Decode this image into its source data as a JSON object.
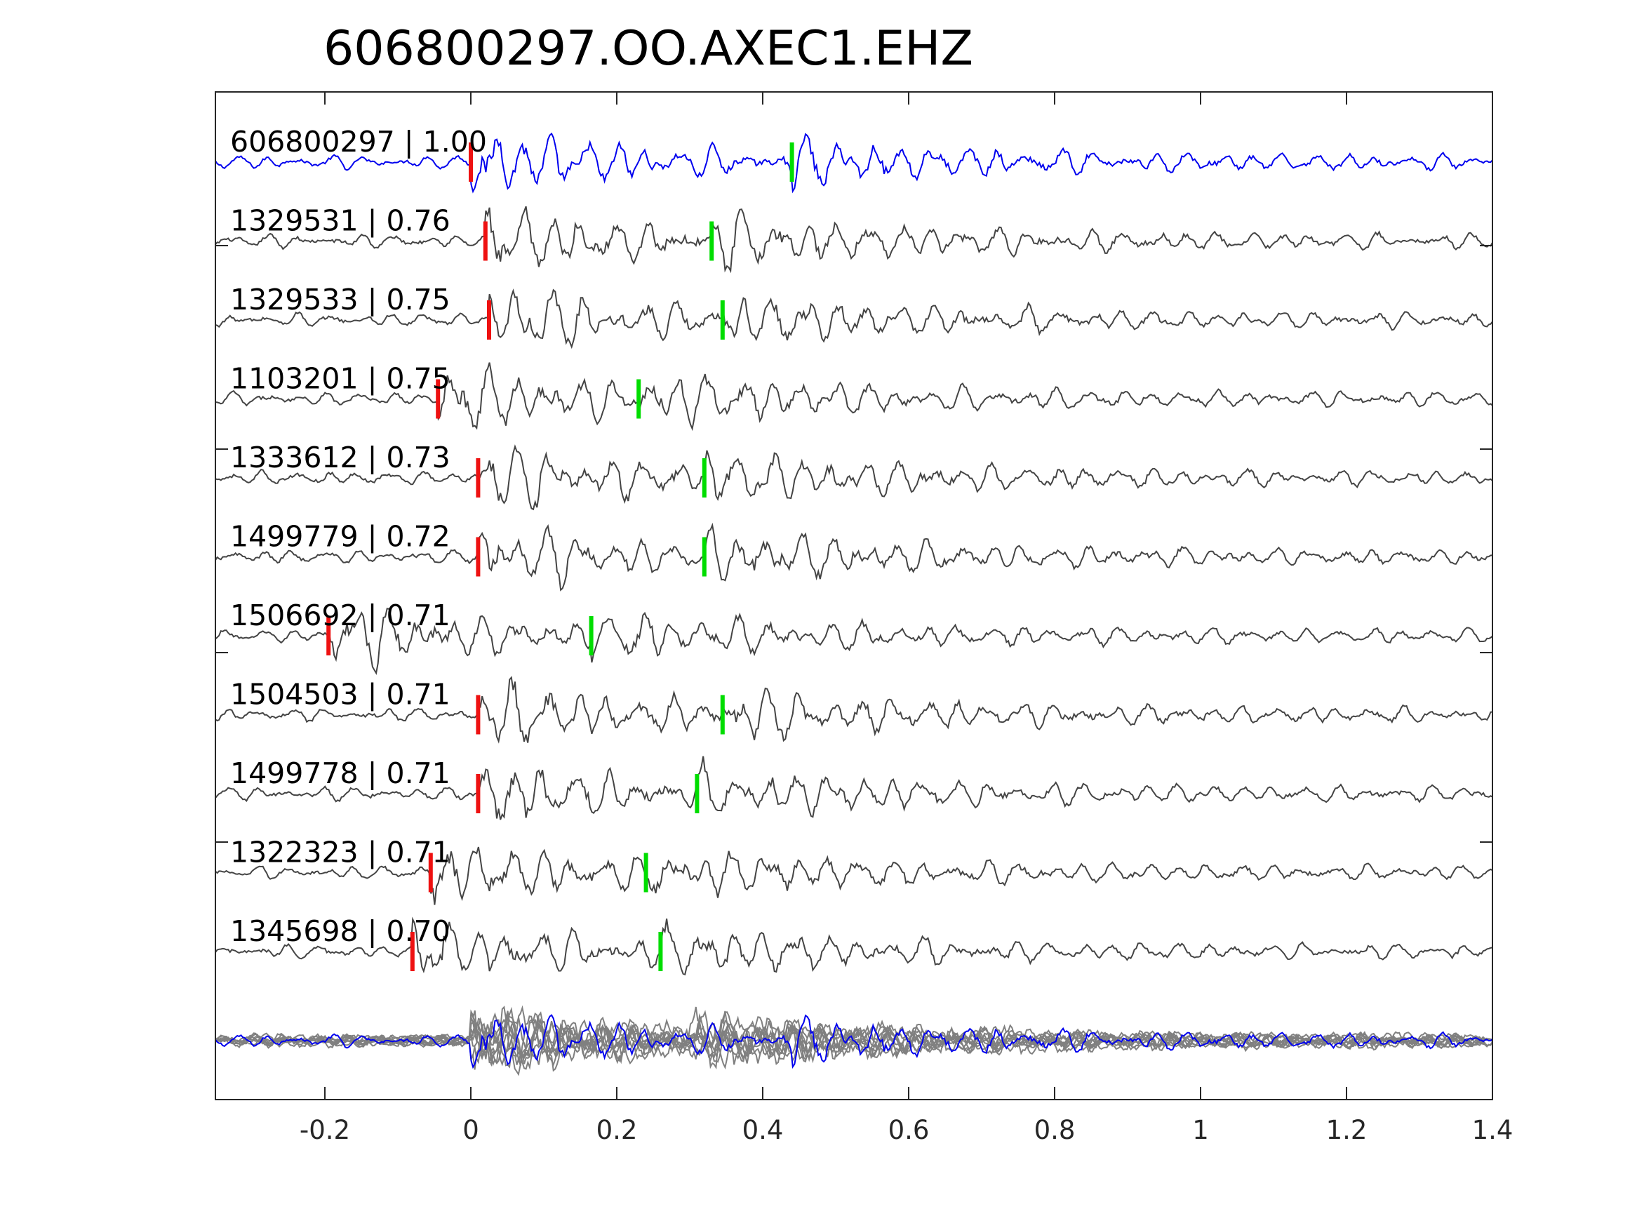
{
  "chart_data": {
    "type": "line",
    "title": "606800297.OO.AXEC1.EHZ",
    "xlabel": "",
    "ylabel": "",
    "xlim": [
      -0.35,
      1.4
    ],
    "xticks": [
      -0.2,
      0,
      0.2,
      0.4,
      0.6,
      0.8,
      1,
      1.2,
      1.4
    ],
    "xtick_labels": [
      "-0.2",
      "0",
      "0.2",
      "0.4",
      "0.6",
      "0.8",
      "1",
      "1.2",
      "1.4"
    ],
    "grid": false,
    "legend": "none",
    "colors": {
      "reference_trace": "#0000ee",
      "matched_trace": "#444444",
      "overlay_trace": "#808080",
      "p_pick": "#ee1111",
      "s_pick": "#00dd00",
      "axes": "#262626"
    },
    "series": [
      {
        "id": "606800297",
        "label": "606800297 | 1.00",
        "p_pick": 0.0,
        "s_pick": 0.44,
        "reference": true
      },
      {
        "id": "1329531",
        "label": "1329531 | 0.76",
        "p_pick": 0.02,
        "s_pick": 0.33
      },
      {
        "id": "1329533",
        "label": "1329533 | 0.75",
        "p_pick": 0.025,
        "s_pick": 0.345
      },
      {
        "id": "1103201",
        "label": "1103201 | 0.75",
        "p_pick": -0.045,
        "s_pick": 0.23
      },
      {
        "id": "1333612",
        "label": "1333612 | 0.73",
        "p_pick": 0.01,
        "s_pick": 0.32
      },
      {
        "id": "1499779",
        "label": "1499779 | 0.72",
        "p_pick": 0.01,
        "s_pick": 0.32
      },
      {
        "id": "1506692",
        "label": "1506692 | 0.71",
        "p_pick": -0.195,
        "s_pick": 0.165
      },
      {
        "id": "1504503",
        "label": "1504503 | 0.71",
        "p_pick": 0.01,
        "s_pick": 0.345
      },
      {
        "id": "1499778",
        "label": "1499778 | 0.71",
        "p_pick": 0.01,
        "s_pick": 0.31
      },
      {
        "id": "1322323",
        "label": "1322323 | 0.71",
        "p_pick": -0.055,
        "s_pick": 0.24
      },
      {
        "id": "1345698",
        "label": "1345698 | 0.70",
        "p_pick": -0.08,
        "s_pick": 0.26
      }
    ]
  }
}
